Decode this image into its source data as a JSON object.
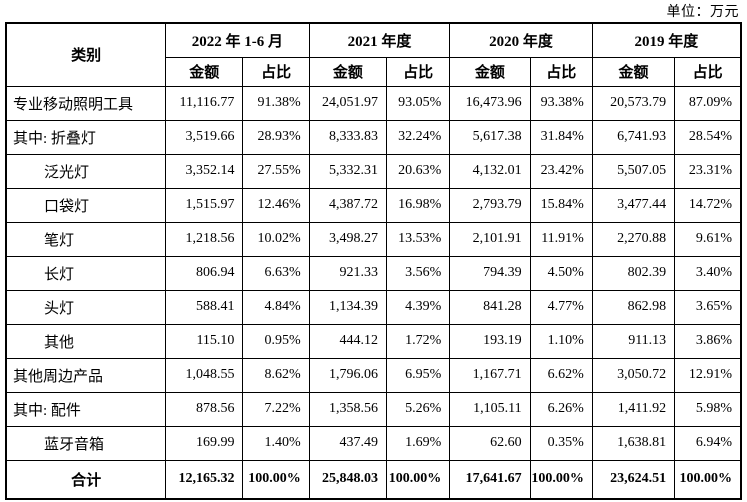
{
  "unit_label": "单位：万元",
  "table": {
    "category_header": "类别",
    "periods": [
      "2022 年 1-6 月",
      "2021 年度",
      "2020 年度",
      "2019 年度"
    ],
    "amount_header": "金额",
    "ratio_header": "占比",
    "rows": [
      {
        "label": "专业移动照明工具",
        "indent": 0,
        "values": [
          "11,116.77",
          "91.38%",
          "24,051.97",
          "93.05%",
          "16,473.96",
          "93.38%",
          "20,573.79",
          "87.09%"
        ]
      },
      {
        "label": "其中: 折叠灯",
        "indent": 0,
        "values": [
          "3,519.66",
          "28.93%",
          "8,333.83",
          "32.24%",
          "5,617.38",
          "31.84%",
          "6,741.93",
          "28.54%"
        ]
      },
      {
        "label": "泛光灯",
        "indent": 1,
        "values": [
          "3,352.14",
          "27.55%",
          "5,332.31",
          "20.63%",
          "4,132.01",
          "23.42%",
          "5,507.05",
          "23.31%"
        ]
      },
      {
        "label": "口袋灯",
        "indent": 1,
        "values": [
          "1,515.97",
          "12.46%",
          "4,387.72",
          "16.98%",
          "2,793.79",
          "15.84%",
          "3,477.44",
          "14.72%"
        ]
      },
      {
        "label": "笔灯",
        "indent": 1,
        "values": [
          "1,218.56",
          "10.02%",
          "3,498.27",
          "13.53%",
          "2,101.91",
          "11.91%",
          "2,270.88",
          "9.61%"
        ]
      },
      {
        "label": "长灯",
        "indent": 1,
        "values": [
          "806.94",
          "6.63%",
          "921.33",
          "3.56%",
          "794.39",
          "4.50%",
          "802.39",
          "3.40%"
        ]
      },
      {
        "label": "头灯",
        "indent": 1,
        "values": [
          "588.41",
          "4.84%",
          "1,134.39",
          "4.39%",
          "841.28",
          "4.77%",
          "862.98",
          "3.65%"
        ]
      },
      {
        "label": "其他",
        "indent": 1,
        "values": [
          "115.10",
          "0.95%",
          "444.12",
          "1.72%",
          "193.19",
          "1.10%",
          "911.13",
          "3.86%"
        ]
      },
      {
        "label": "其他周边产品",
        "indent": 0,
        "values": [
          "1,048.55",
          "8.62%",
          "1,796.06",
          "6.95%",
          "1,167.71",
          "6.62%",
          "3,050.72",
          "12.91%"
        ]
      },
      {
        "label": "其中: 配件",
        "indent": 0,
        "values": [
          "878.56",
          "7.22%",
          "1,358.56",
          "5.26%",
          "1,105.11",
          "6.26%",
          "1,411.92",
          "5.98%"
        ]
      },
      {
        "label": "蓝牙音箱",
        "indent": 1,
        "values": [
          "169.99",
          "1.40%",
          "437.49",
          "1.69%",
          "62.60",
          "0.35%",
          "1,638.81",
          "6.94%"
        ]
      },
      {
        "label": "合计",
        "indent": 0,
        "bold": true,
        "center": true,
        "values": [
          "12,165.32",
          "100.00%",
          "25,848.03",
          "100.00%",
          "17,641.67",
          "100.00%",
          "23,624.51",
          "100.00%"
        ]
      }
    ]
  }
}
